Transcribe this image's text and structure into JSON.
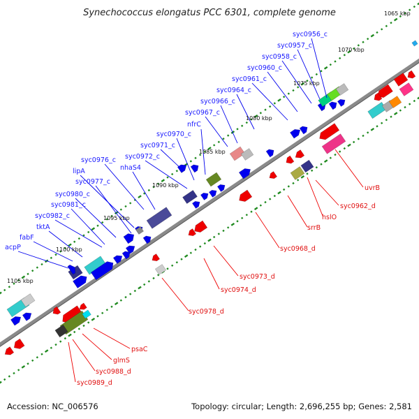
{
  "title": "Synechococcus elongatus PCC 6301, complete genome",
  "footer": {
    "accession": "Accession: NC_006576",
    "topology": "Topology: circular; Length: 2,696,255 bp; Genes: 2,581"
  },
  "colors": {
    "forward": "#0000ee",
    "reverse": "#ee0000",
    "backbone": "#8a8a8a",
    "tick": "#1f8a1f"
  },
  "kbp_labels": [
    "1065 kbp",
    "1070 kbp",
    "1075 kbp",
    "1080 kbp",
    "1085 kbp",
    "1090 kbp",
    "1095 kbp",
    "1100 kbp",
    "1105 kbp"
  ],
  "forward_genes": [
    "syc0956_c",
    "syc0957_c",
    "syc0958_c",
    "syc0960_c",
    "syc0961_c",
    "syc0964_c",
    "syc0966_c",
    "syc0967_c",
    "nfrC",
    "syc0970_c",
    "syc0971_c",
    "syc0972_c",
    "syc0976_c",
    "nhaS4",
    "lipA",
    "syc0977_c",
    "syc0980_c",
    "syc0981_c",
    "syc0982_c",
    "tktA",
    "fabF",
    "acpP"
  ],
  "reverse_genes": [
    "uvrB",
    "syc0962_d",
    "hslO",
    "srrB",
    "syc0968_d",
    "syc0973_d",
    "syc0974_d",
    "syc0978_d",
    "psaC",
    "glmS",
    "syc0988_d",
    "syc0989_d"
  ]
}
